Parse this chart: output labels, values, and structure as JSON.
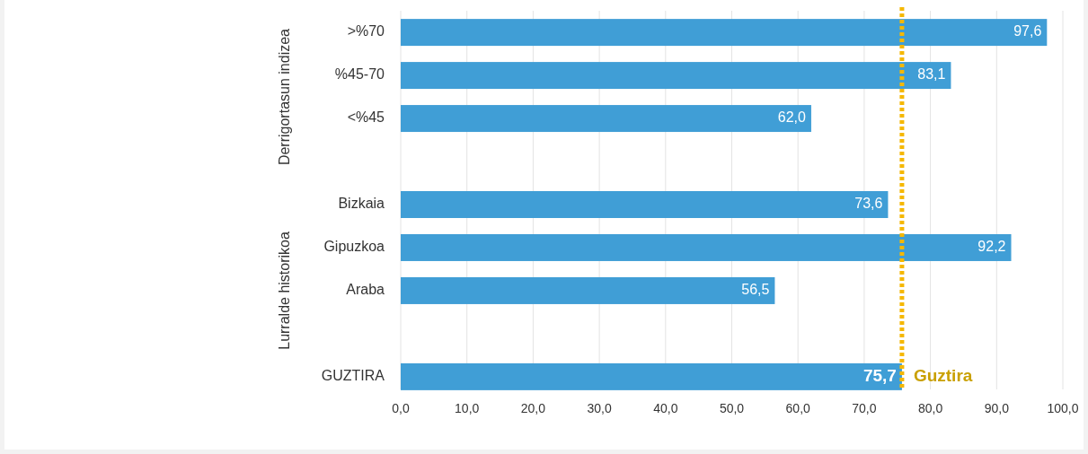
{
  "chart_data": {
    "type": "bar",
    "orientation": "horizontal",
    "categories": [
      ">%70",
      "%45-70",
      "<%45",
      null,
      "Bizkaia",
      "Gipuzkoa",
      "Araba",
      null,
      "GUZTIRA"
    ],
    "values": [
      97.6,
      83.1,
      62.0,
      null,
      73.6,
      92.2,
      56.5,
      null,
      75.7
    ],
    "color": "#409ed6",
    "value_labels": [
      "97,6",
      "83,1",
      "62,0",
      null,
      "73,6",
      "92,2",
      "56,5",
      null,
      "75,7"
    ],
    "xlim": [
      0,
      100
    ],
    "xticks": [
      {
        "value": 0,
        "label": "0,0"
      },
      {
        "value": 10,
        "label": "10,0"
      },
      {
        "value": 20,
        "label": "20,0"
      },
      {
        "value": 30,
        "label": "30,0"
      },
      {
        "value": 40,
        "label": "40,0"
      },
      {
        "value": 50,
        "label": "50,0"
      },
      {
        "value": 60,
        "label": "60,0"
      },
      {
        "value": 70,
        "label": "70,0"
      },
      {
        "value": 80,
        "label": "80,0"
      },
      {
        "value": 90,
        "label": "90,0"
      },
      {
        "value": 100,
        "label": "100,0"
      }
    ],
    "grid": "x",
    "ref_lines": [
      {
        "axis": "x",
        "value": 75.7,
        "label": "Guztira",
        "color": "#f5b800",
        "line_style": "dotted"
      }
    ],
    "annotations": [
      "Derrigortasun indizea",
      "Lurralde historikoa"
    ]
  }
}
